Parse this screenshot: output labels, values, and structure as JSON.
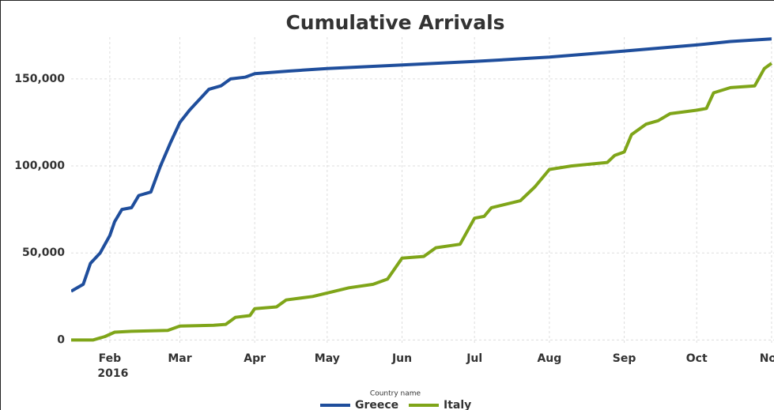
{
  "chart_data": {
    "type": "line",
    "title": "Cumulative Arrivals",
    "xlim": [
      "2016-01-16",
      "2016-11-02"
    ],
    "xticks": [
      {
        "value": "2016-02-01",
        "label": "Feb"
      },
      {
        "value": "2016-03-01",
        "label": "Mar"
      },
      {
        "value": "2016-04-01",
        "label": "Apr"
      },
      {
        "value": "2016-05-01",
        "label": "May"
      },
      {
        "value": "2016-06-01",
        "label": "Jun"
      },
      {
        "value": "2016-07-01",
        "label": "Jul"
      },
      {
        "value": "2016-08-01",
        "label": "Aug"
      },
      {
        "value": "2016-09-01",
        "label": "Sep"
      },
      {
        "value": "2016-10-01",
        "label": "Oct"
      },
      {
        "value": "2016-11-01",
        "label": "Nov"
      }
    ],
    "year_label": "2016",
    "ylim": [
      -3000,
      174000
    ],
    "yticks": [
      0,
      {
        "value": 50000,
        "label": "50,000"
      },
      {
        "value": 100000,
        "label": "100,000"
      },
      {
        "value": 150000,
        "label": "150,000"
      }
    ],
    "grid": true,
    "legend_title": "Country name",
    "legend_position": "bottom",
    "series": [
      {
        "name": "Greece",
        "color": "#1f4e9c",
        "x": [
          "2016-01-16",
          "2016-01-21",
          "2016-01-24",
          "2016-01-28",
          "2016-02-01",
          "2016-02-03",
          "2016-02-06",
          "2016-02-10",
          "2016-02-13",
          "2016-02-18",
          "2016-02-22",
          "2016-02-26",
          "2016-03-01",
          "2016-03-05",
          "2016-03-09",
          "2016-03-13",
          "2016-03-18",
          "2016-03-22",
          "2016-03-28",
          "2016-04-01",
          "2016-04-15",
          "2016-05-01",
          "2016-06-01",
          "2016-07-01",
          "2016-08-01",
          "2016-09-01",
          "2016-10-01",
          "2016-10-15",
          "2016-11-01"
        ],
        "values": [
          28000,
          32000,
          44000,
          50000,
          60000,
          68000,
          75000,
          76000,
          83000,
          85000,
          100000,
          113000,
          125000,
          132000,
          138000,
          144000,
          146000,
          150000,
          151000,
          153000,
          154500,
          156000,
          158000,
          160000,
          162500,
          166000,
          169500,
          171500,
          173000
        ]
      },
      {
        "name": "Italy",
        "color": "#7fa519",
        "x": [
          "2016-01-16",
          "2016-01-25",
          "2016-01-30",
          "2016-02-03",
          "2016-02-10",
          "2016-02-25",
          "2016-03-01",
          "2016-03-15",
          "2016-03-20",
          "2016-03-24",
          "2016-03-30",
          "2016-04-01",
          "2016-04-10",
          "2016-04-14",
          "2016-04-25",
          "2016-05-01",
          "2016-05-10",
          "2016-05-20",
          "2016-05-26",
          "2016-06-01",
          "2016-06-10",
          "2016-06-15",
          "2016-06-25",
          "2016-07-01",
          "2016-07-05",
          "2016-07-08",
          "2016-07-20",
          "2016-07-26",
          "2016-08-01",
          "2016-08-10",
          "2016-08-25",
          "2016-08-28",
          "2016-09-01",
          "2016-09-04",
          "2016-09-10",
          "2016-09-15",
          "2016-09-20",
          "2016-10-01",
          "2016-10-05",
          "2016-10-08",
          "2016-10-15",
          "2016-10-25",
          "2016-10-29",
          "2016-11-01"
        ],
        "values": [
          0,
          0,
          2000,
          4500,
          5000,
          5500,
          8000,
          8500,
          9000,
          13000,
          14000,
          18000,
          19000,
          23000,
          25000,
          27000,
          30000,
          32000,
          35000,
          47000,
          48000,
          53000,
          55000,
          70000,
          71000,
          76000,
          80000,
          88000,
          98000,
          100000,
          102000,
          106000,
          108000,
          118000,
          124000,
          126000,
          130000,
          132000,
          133000,
          142000,
          145000,
          146000,
          156000,
          159000
        ]
      }
    ]
  }
}
